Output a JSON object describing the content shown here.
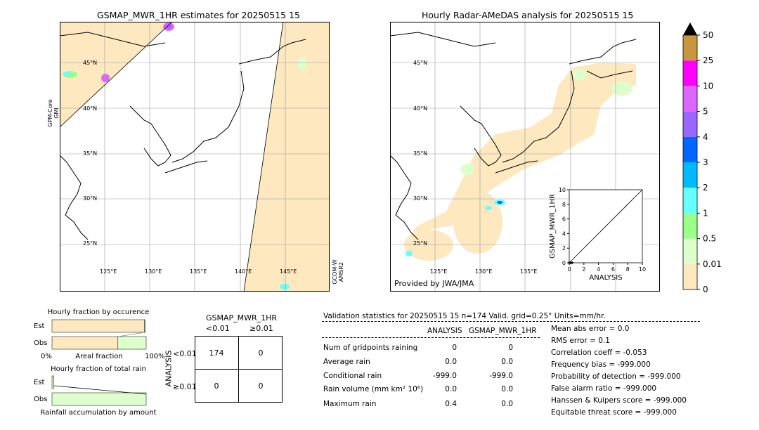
{
  "left_map": {
    "title": "GSMAP_MWR_1HR estimates for 20250515 15",
    "lat_labels": [
      "45°N",
      "40°N",
      "35°N",
      "30°N",
      "25°N"
    ],
    "lon_labels": [
      "125°E",
      "130°E",
      "135°E",
      "140°E",
      "145°E"
    ],
    "side_label_left": [
      "GPM-Core",
      "GMI"
    ],
    "side_label_right": [
      "GCOM-W",
      "AMSR2"
    ]
  },
  "right_map": {
    "title": "Hourly Radar-AMeDAS analysis for 20250515 15",
    "lat_labels": [
      "45°N",
      "40°N",
      "35°N",
      "30°N",
      "25°N"
    ],
    "lon_labels": [
      "125°E",
      "130°E",
      "135°E"
    ],
    "credit": "Provided by JWA/JMA"
  },
  "colorbar": {
    "labels": [
      "50",
      "25",
      "10",
      "5",
      "4",
      "3",
      "2",
      "1",
      "0.5",
      "0.01",
      "0"
    ],
    "colors": [
      "#c8963c",
      "#ff00ff",
      "#dd66ff",
      "#9966ff",
      "#0066ff",
      "#00bbff",
      "#66ffff",
      "#99ff88",
      "#ddffcc",
      "#fde8c0"
    ]
  },
  "chart_data": [
    {
      "type": "scatter",
      "title": "",
      "xlabel": "ANALYSIS",
      "ylabel": "GSMAP_MWR_1HR",
      "xlim": [
        0,
        10
      ],
      "ylim": [
        0,
        10
      ],
      "x_ticks": [
        "0",
        "2",
        "4",
        "6",
        "8",
        "10"
      ],
      "y_ticks": [
        "0",
        "2",
        "4",
        "6",
        "8",
        "10"
      ],
      "points": [
        {
          "x": 0.0,
          "y": 0.0
        },
        {
          "x": 0.1,
          "y": 0.0
        },
        {
          "x": 0.2,
          "y": 0.0
        },
        {
          "x": 0.4,
          "y": 0.0
        }
      ],
      "diagonal": true
    },
    {
      "type": "bar",
      "title": "Hourly fraction by occurence",
      "categories": [
        "Est",
        "Obs"
      ],
      "series": [
        {
          "values": [
            0.98,
            0.7
          ],
          "color": "#fde8c0"
        },
        {
          "values": [
            0.01,
            0.3
          ],
          "color": "#ddffcc"
        }
      ],
      "xlabel": "Areal fraction",
      "x_ticks": [
        "0%",
        "100%"
      ]
    },
    {
      "type": "bar",
      "title": "Hourly fraction of total rain",
      "categories": [
        "Est",
        "Obs"
      ],
      "series": [
        {
          "values": [
            0.02,
            1.0
          ],
          "color": "#ddffcc"
        }
      ],
      "xlabel": "Rainfall accumulation by amount"
    }
  ],
  "contingency": {
    "title": "GSMAP_MWR_1HR",
    "col_headers": [
      "<0.01",
      "≥0.01"
    ],
    "row_label": "ANALYSIS",
    "row_headers": [
      "<0.01",
      "≥0.01"
    ],
    "cells": [
      [
        "174",
        "0"
      ],
      [
        "0",
        "0"
      ]
    ]
  },
  "validation": {
    "header": "Validation statistics for 20250515 15  n=174 Valid. grid=0.25° Units=mm/hr.",
    "col_headers": [
      "ANALYSIS",
      "GSMAP_MWR_1HR"
    ],
    "rows": [
      {
        "label": "Num of gridpoints raining",
        "analysis": "0",
        "gsmap": "0"
      },
      {
        "label": "Average rain",
        "analysis": "0.0",
        "gsmap": "0.0"
      },
      {
        "label": "Conditional rain",
        "analysis": "-999.0",
        "gsmap": "-999.0"
      },
      {
        "label": "Rain volume (mm km² 10⁶)",
        "analysis": "0.0",
        "gsmap": "0.0"
      },
      {
        "label": "Maximum rain",
        "analysis": "0.4",
        "gsmap": "0.0"
      }
    ],
    "scores": [
      "Mean abs error =    0.0",
      "RMS error =    0.1",
      "Correlation coeff = -0.053",
      "Frequency bias = -999.000",
      "Probability of detection = -999.000",
      "False alarm ratio = -999.000",
      "Hanssen & Kuipers score = -999.000",
      "Equitable threat score = -999.000"
    ]
  }
}
